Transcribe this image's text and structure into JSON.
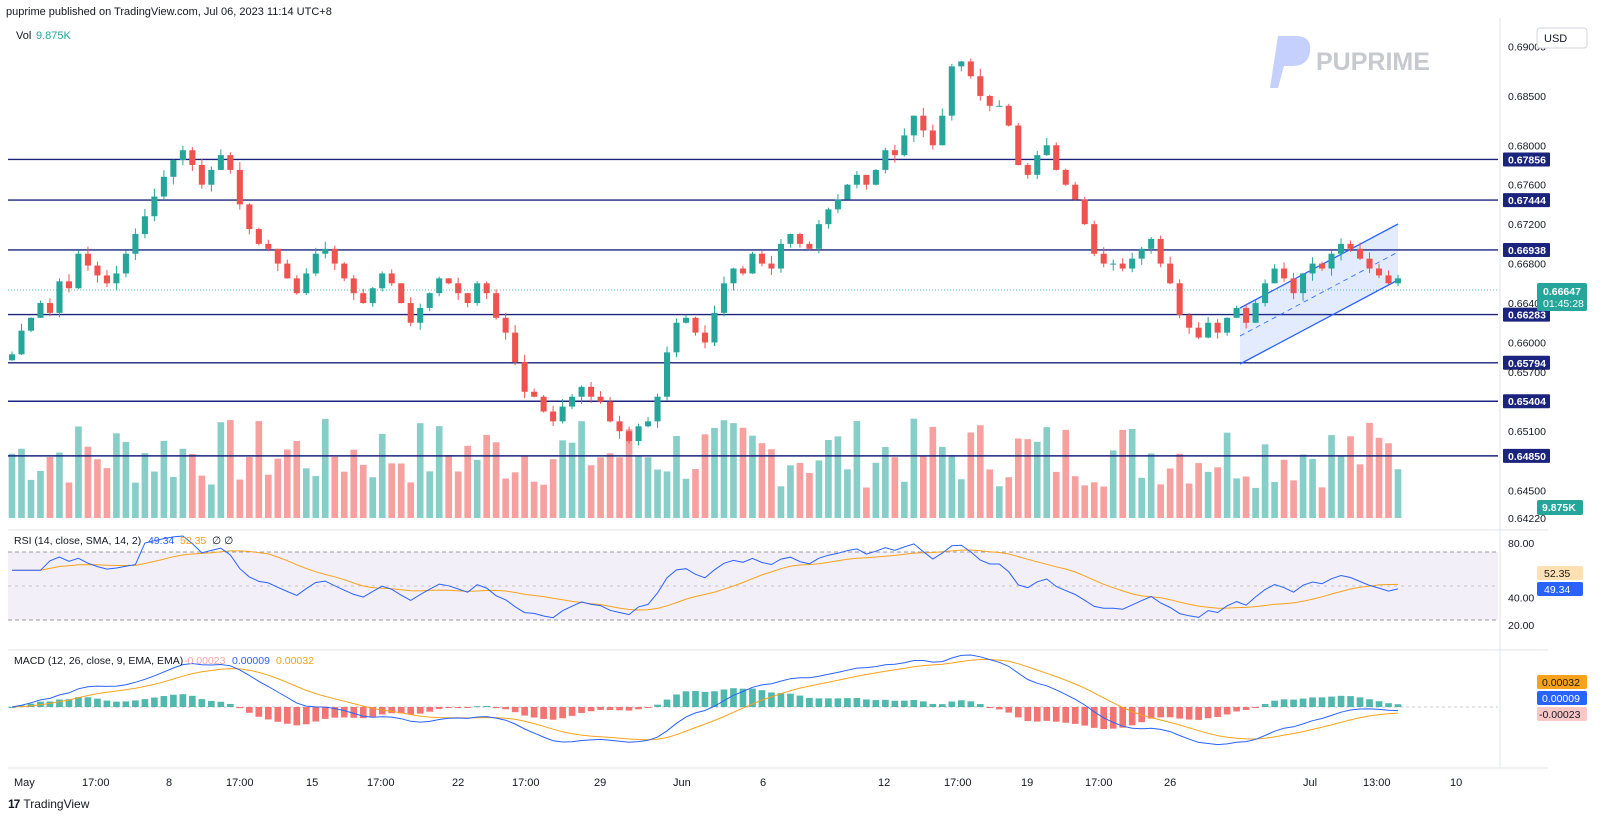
{
  "header": {
    "published": "puprime published on TradingView.com, Jul 06, 2023 11:14 UTC+8"
  },
  "watermark": {
    "brand": "PUPRIME"
  },
  "footer": {
    "brand": "TradingView",
    "logo": "17"
  },
  "currency": "USD",
  "colors": {
    "up": "#26a69a",
    "down": "#ef5350",
    "level": "#1a237e",
    "channel": "#2962ff",
    "rsi": "#2962ff",
    "rsi_ma": "#f7a21b",
    "macd": "#2962ff",
    "signal": "#f7a21b"
  },
  "price_panel": {
    "vol_label": "Vol",
    "vol_value": "9.875K",
    "y_ticks": [
      "0.69000",
      "0.68500",
      "0.68000",
      "0.67600",
      "0.67200",
      "0.66800",
      "0.66400",
      "0.66000",
      "0.65700",
      "0.65100",
      "0.64500",
      "0.64220"
    ],
    "levels": [
      "0.67856",
      "0.67444",
      "0.66938",
      "0.66283",
      "0.65794",
      "0.65404",
      "0.64850"
    ],
    "current_price": "0.66647",
    "countdown": "01:45:28",
    "vol_badge": "9.875K"
  },
  "rsi_panel": {
    "label": "RSI (14, close, SMA, 14, 2)",
    "rsi_value": "49.34",
    "ma_value": "52.35",
    "extra": "∅ ∅",
    "y_ticks": [
      "80.00",
      "40.00",
      "20.00"
    ]
  },
  "macd_panel": {
    "label": "MACD (12, 26, close, 9, EMA, EMA)",
    "hist_value": "-0.00023",
    "macd_value": "0.00009",
    "signal_value": "0.00032"
  },
  "x_ticks": [
    "May",
    "17:00",
    "8",
    "17:00",
    "15",
    "17:00",
    "22",
    "17:00",
    "29",
    "Jun",
    "6",
    "12",
    "17:00",
    "19",
    "17:00",
    "26",
    "Jul",
    "13:00",
    "10"
  ],
  "chart_data": {
    "type": "candlestick",
    "title": "",
    "ylim": [
      0.6422,
      0.6925
    ],
    "levels": [
      0.67856,
      0.67444,
      0.66938,
      0.66283,
      0.65794,
      0.65404,
      0.6485
    ],
    "closes": [
      0.6588,
      0.6612,
      0.6625,
      0.664,
      0.663,
      0.6662,
      0.6655,
      0.669,
      0.6678,
      0.6668,
      0.666,
      0.667,
      0.669,
      0.671,
      0.6728,
      0.6748,
      0.6768,
      0.6785,
      0.6795,
      0.678,
      0.676,
      0.6775,
      0.679,
      0.6775,
      0.674,
      0.6715,
      0.67,
      0.6695,
      0.668,
      0.6665,
      0.665,
      0.667,
      0.669,
      0.6695,
      0.668,
      0.6665,
      0.665,
      0.664,
      0.6655,
      0.667,
      0.666,
      0.664,
      0.662,
      0.6635,
      0.665,
      0.6665,
      0.666,
      0.665,
      0.664,
      0.666,
      0.665,
      0.6625,
      0.661,
      0.658,
      0.655,
      0.6545,
      0.653,
      0.652,
      0.6535,
      0.6545,
      0.6555,
      0.6545,
      0.654,
      0.652,
      0.651,
      0.65,
      0.6515,
      0.652,
      0.6545,
      0.659,
      0.662,
      0.6625,
      0.661,
      0.66,
      0.663,
      0.666,
      0.6675,
      0.667,
      0.669,
      0.668,
      0.6675,
      0.67,
      0.671,
      0.67,
      0.6695,
      0.672,
      0.6735,
      0.6745,
      0.676,
      0.677,
      0.676,
      0.6775,
      0.6795,
      0.679,
      0.681,
      0.683,
      0.6815,
      0.68,
      0.683,
      0.688,
      0.6885,
      0.687,
      0.685,
      0.684,
      0.684,
      0.682,
      0.678,
      0.677,
      0.679,
      0.68,
      0.6775,
      0.676,
      0.6745,
      0.672,
      0.669,
      0.668,
      0.668,
      0.6675,
      0.6685,
      0.6695,
      0.6705,
      0.668,
      0.666,
      0.6628,
      0.6615,
      0.6605,
      0.662,
      0.661,
      0.6625,
      0.6635,
      0.662,
      0.664,
      0.666,
      0.6675,
      0.6665,
      0.665,
      0.667,
      0.668,
      0.6675,
      0.669,
      0.67,
      0.6695,
      0.6685,
      0.6675,
      0.6668,
      0.666,
      0.6665
    ]
  }
}
